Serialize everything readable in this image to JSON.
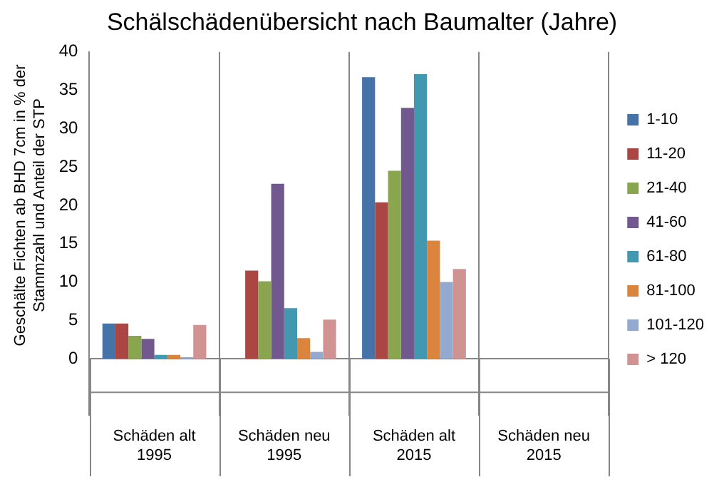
{
  "chart_data": {
    "type": "bar",
    "title": "Schälschädenübersicht nach Baumalter (Jahre)",
    "ylabel": "Geschälte Fichten ab BHD 7cm in % der Stammzahl und Anteil der STP",
    "categories": [
      "Schäden alt\n1995",
      "Schäden neu\n1995",
      "Schäden alt\n2015",
      "Schäden neu\n2015"
    ],
    "series": [
      {
        "name": "1-10",
        "color": "#4572a7",
        "values": [
          4.6,
          0,
          36.7,
          null
        ]
      },
      {
        "name": "11-20",
        "color": "#aa4643",
        "values": [
          4.6,
          11.5,
          20.4,
          null
        ]
      },
      {
        "name": "21-40",
        "color": "#89a54e",
        "values": [
          3.0,
          10.1,
          24.5,
          null
        ]
      },
      {
        "name": "41-60",
        "color": "#71588f",
        "values": [
          2.6,
          22.8,
          32.7,
          null
        ]
      },
      {
        "name": "61-80",
        "color": "#4198af",
        "values": [
          0.5,
          6.6,
          37.1,
          null
        ]
      },
      {
        "name": "81-100",
        "color": "#db843d",
        "values": [
          0.5,
          2.7,
          15.4,
          null
        ]
      },
      {
        "name": "101-120",
        "color": "#93a9cf",
        "values": [
          0.2,
          0.9,
          10.0,
          null
        ]
      },
      {
        "name": "> 120",
        "color": "#d19392",
        "values": [
          4.4,
          5.1,
          11.7,
          null
        ]
      }
    ],
    "ylim": [
      0,
      40
    ],
    "yticks": [
      0,
      5,
      10,
      15,
      20,
      25,
      30,
      35,
      40
    ],
    "grid": "x",
    "legend": "right"
  }
}
